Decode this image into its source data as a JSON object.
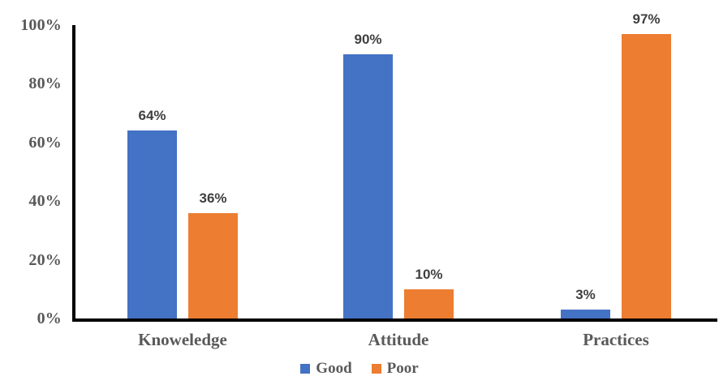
{
  "chart_data": {
    "type": "bar",
    "title": "",
    "xlabel": "",
    "ylabel": "",
    "categories": [
      "Knoweledge",
      "Attitude",
      "Practices"
    ],
    "series": [
      {
        "name": "Good",
        "color": "#4472C4",
        "values": [
          64,
          90,
          3
        ],
        "labels": [
          "64%",
          "90%",
          "3%"
        ]
      },
      {
        "name": "Poor",
        "color": "#ED7D31",
        "values": [
          36,
          10,
          97
        ],
        "labels": [
          "36%",
          "10%",
          "97%"
        ]
      }
    ],
    "y_axis": {
      "min": 0,
      "max": 100,
      "tick_values": [
        0,
        20,
        40,
        60,
        80,
        100
      ],
      "tick_labels": [
        "0%",
        "20%",
        "40%",
        "60%",
        "80%",
        "100%"
      ]
    },
    "legend": {
      "position": "bottom",
      "entries": [
        {
          "label": "Good",
          "color": "#4472C4"
        },
        {
          "label": "Poor",
          "color": "#ED7D31"
        }
      ]
    },
    "gridlines": false
  },
  "colors": {
    "background": "#FFFFFF",
    "axis_line": "#000000",
    "tick_label": "#595959",
    "category_label": "#595959",
    "data_label": "#3F3F3F",
    "legend_label": "#595959"
  }
}
